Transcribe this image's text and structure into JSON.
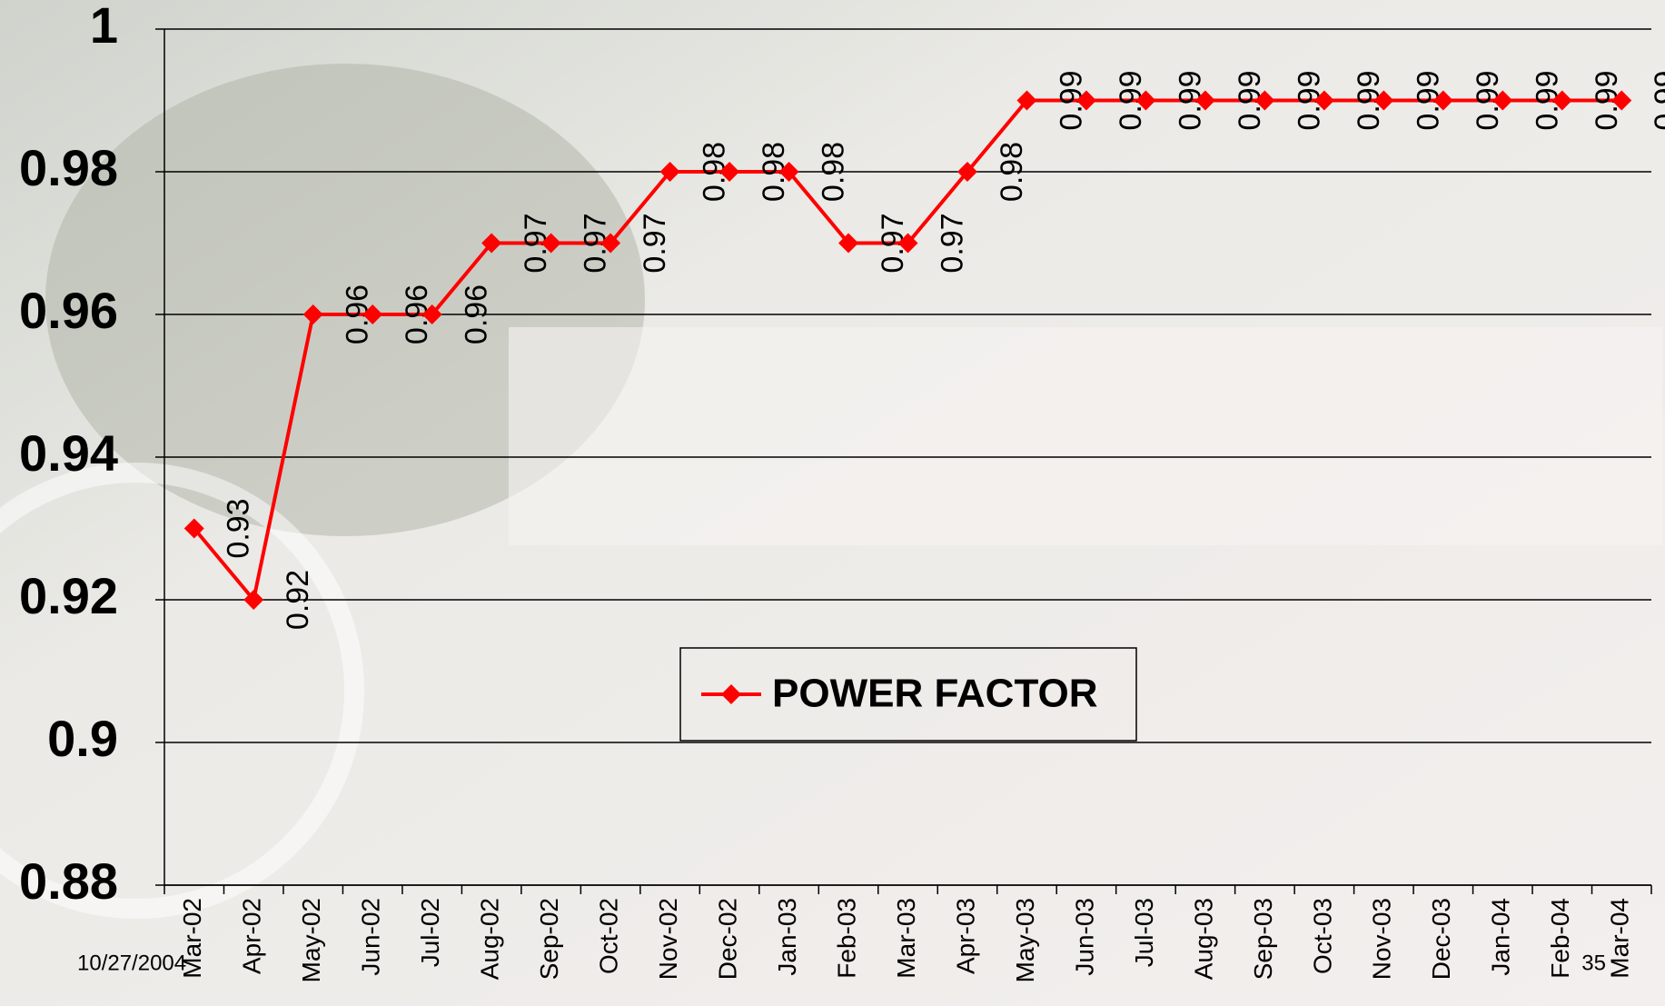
{
  "chart_data": {
    "type": "line",
    "categories": [
      "Mar-02",
      "Apr-02",
      "May-02",
      "Jun-02",
      "Jul-02",
      "Aug-02",
      "Sep-02",
      "Oct-02",
      "Nov-02",
      "Dec-02",
      "Jan-03",
      "Feb-03",
      "Mar-03",
      "Apr-03",
      "May-03",
      "Jun-03",
      "Jul-03",
      "Aug-03",
      "Sep-03",
      "Oct-03",
      "Nov-03",
      "Dec-03",
      "Jan-04",
      "Feb-04",
      "Mar-04"
    ],
    "series": [
      {
        "name": "POWER FACTOR",
        "color": "#ff0000",
        "values": [
          0.93,
          0.92,
          0.96,
          0.96,
          0.96,
          0.97,
          0.97,
          0.97,
          0.98,
          0.98,
          0.98,
          0.97,
          0.97,
          0.98,
          0.99,
          0.99,
          0.99,
          0.99,
          0.99,
          0.99,
          0.99,
          0.99,
          0.99,
          0.99,
          0.99
        ]
      }
    ],
    "ylim": [
      0.88,
      1
    ],
    "yticks": [
      0.88,
      0.9,
      0.92,
      0.94,
      0.96,
      0.98,
      1
    ],
    "grid": true,
    "data_labels": true
  },
  "footer": {
    "date": "10/27/2004",
    "page": "35"
  }
}
